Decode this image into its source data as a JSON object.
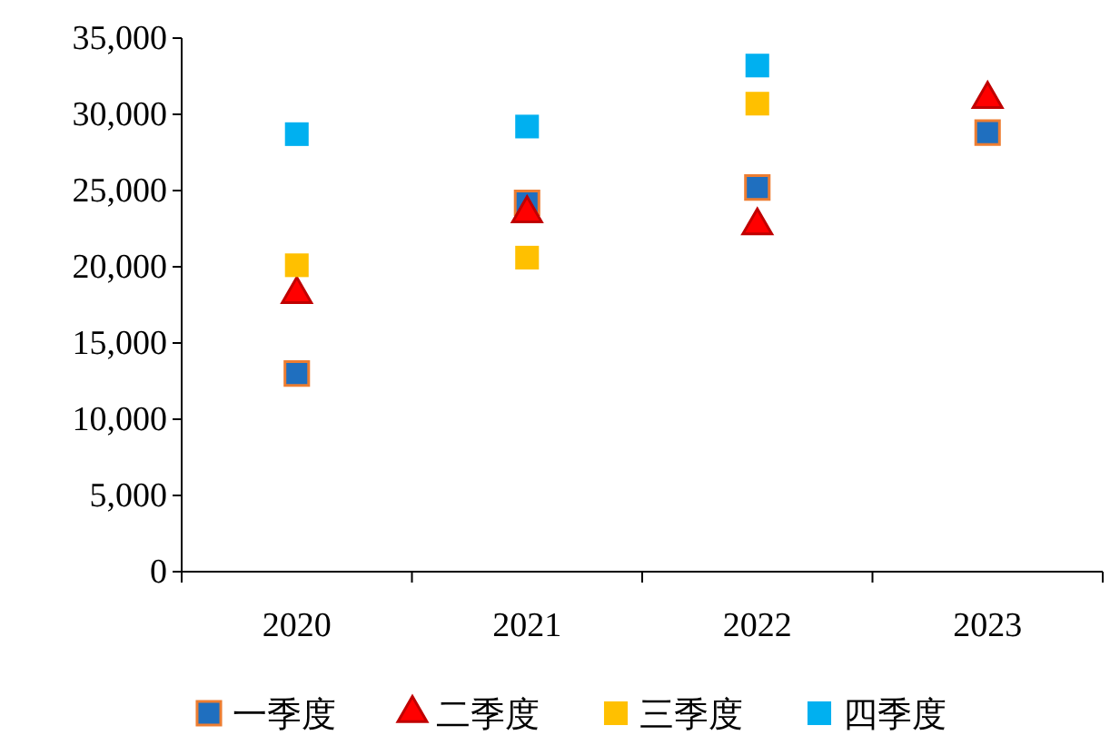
{
  "chart_data": {
    "type": "scatter",
    "categories": [
      "2020",
      "2021",
      "2022",
      "2023"
    ],
    "series": [
      {
        "name": "一季度",
        "color": "#1f6fbf",
        "marker": "square",
        "values": [
          13000,
          24200,
          25200,
          28800
        ]
      },
      {
        "name": "二季度",
        "color": "#ff0000",
        "marker": "triangle",
        "values": [
          18200,
          23500,
          22700,
          31000
        ]
      },
      {
        "name": "三季度",
        "color": "#ffc000",
        "marker": "square",
        "values": [
          20100,
          20600,
          30700,
          null
        ]
      },
      {
        "name": "四季度",
        "color": "#00b0f0",
        "marker": "square",
        "values": [
          28700,
          29200,
          33200,
          null
        ]
      }
    ],
    "ylim": [
      0,
      35000
    ],
    "yticks": [
      {
        "value": 0,
        "label": "0"
      },
      {
        "value": 5000,
        "label": "5,000"
      },
      {
        "value": 10000,
        "label": "10,000"
      },
      {
        "value": 15000,
        "label": "15,000"
      },
      {
        "value": 20000,
        "label": "20,000"
      },
      {
        "value": 25000,
        "label": "25,000"
      },
      {
        "value": 30000,
        "label": "30,000"
      },
      {
        "value": 35000,
        "label": "35,000"
      }
    ],
    "grid": false,
    "legend": "bottom"
  }
}
